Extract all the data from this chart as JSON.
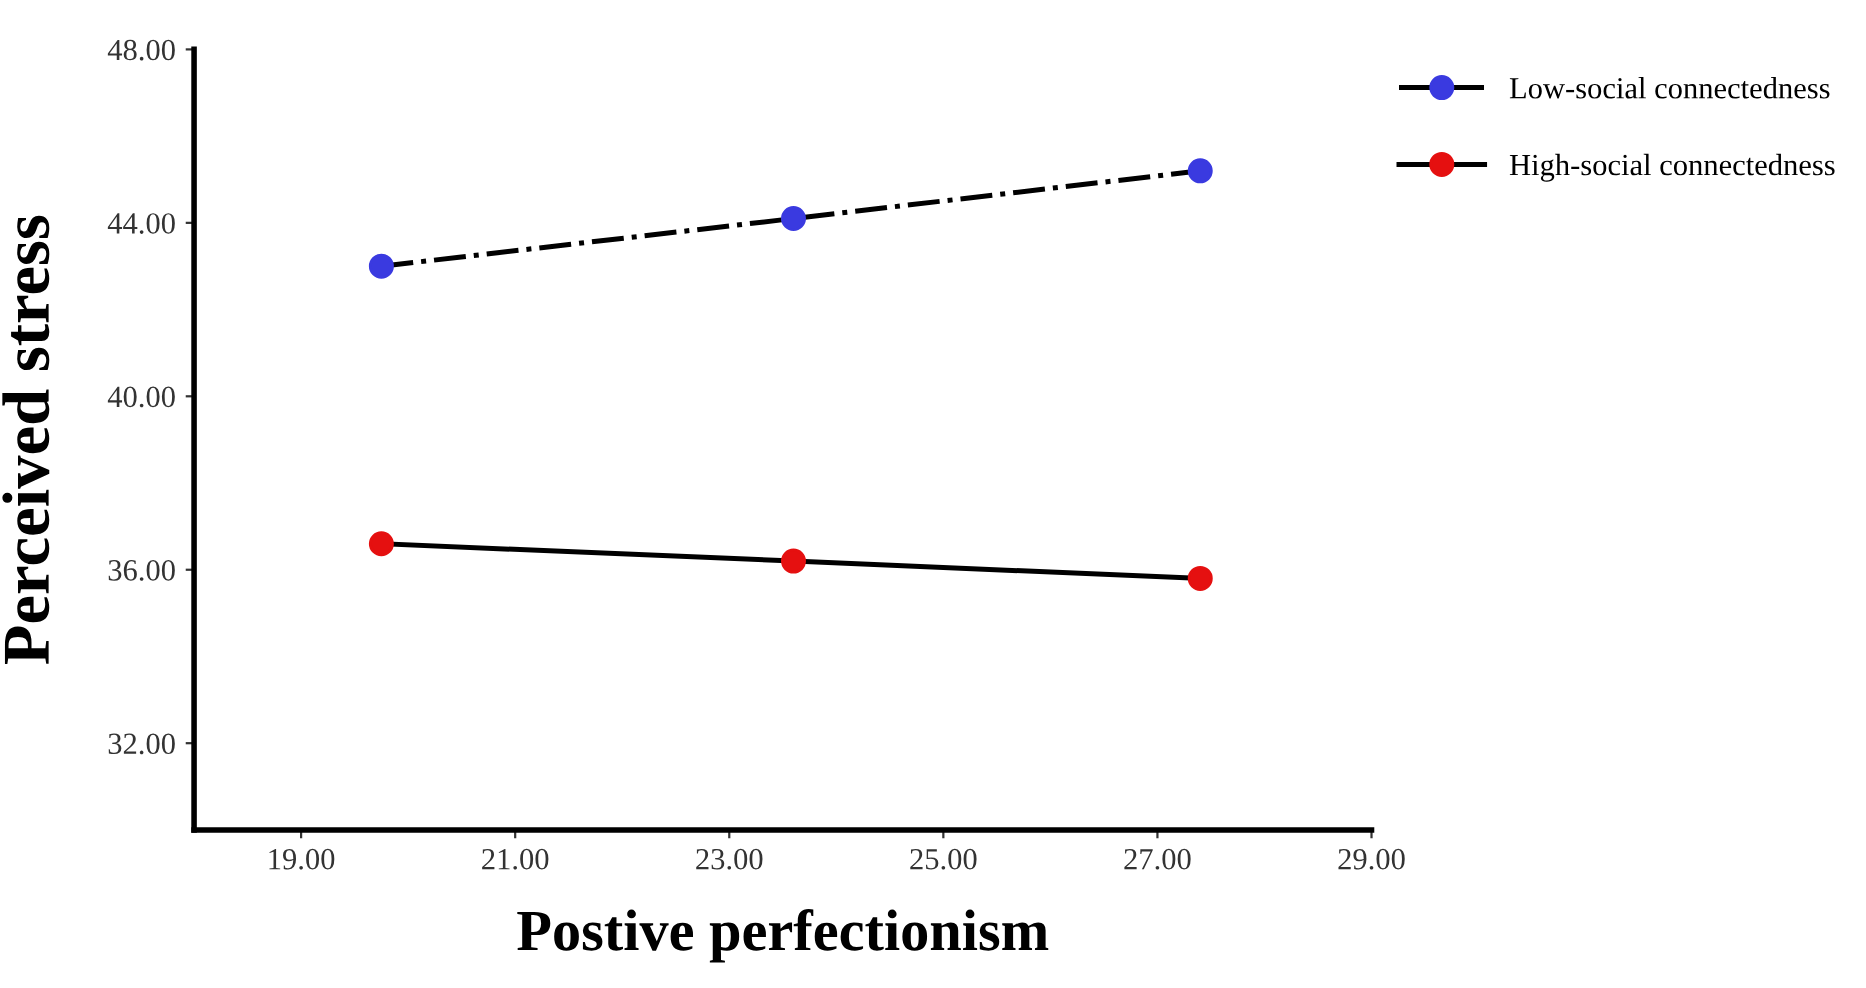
{
  "chart_data": {
    "type": "line",
    "xlabel": "Postive perfectionism",
    "ylabel": "Perceived stress",
    "xlim": [
      18,
      29
    ],
    "xticks": [
      {
        "value": 19,
        "label": "19.00"
      },
      {
        "value": 21,
        "label": "21.00"
      },
      {
        "value": 23,
        "label": "23.00"
      },
      {
        "value": 25,
        "label": "25.00"
      },
      {
        "value": 27,
        "label": "27.00"
      },
      {
        "value": 29,
        "label": "29.00"
      }
    ],
    "ylim": [
      30,
      48
    ],
    "yticks": [
      {
        "value": 32,
        "label": "32.00"
      },
      {
        "value": 36,
        "label": "36.00"
      },
      {
        "value": 40,
        "label": "40.00"
      },
      {
        "value": 44,
        "label": "44.00"
      },
      {
        "value": 48,
        "label": "48.00"
      }
    ],
    "x": [
      19.75,
      23.6,
      27.4
    ],
    "series": [
      {
        "name": "Low-social connectedness",
        "color": "#3a3ae0",
        "line_style": "dashdot",
        "values": [
          43.0,
          44.1,
          45.2
        ]
      },
      {
        "name": "High-social connectedness",
        "color": "#e51010",
        "line_style": "solid",
        "values": [
          36.6,
          36.2,
          35.8
        ]
      }
    ],
    "marker": "circle",
    "legend": "top right",
    "grid": false
  }
}
